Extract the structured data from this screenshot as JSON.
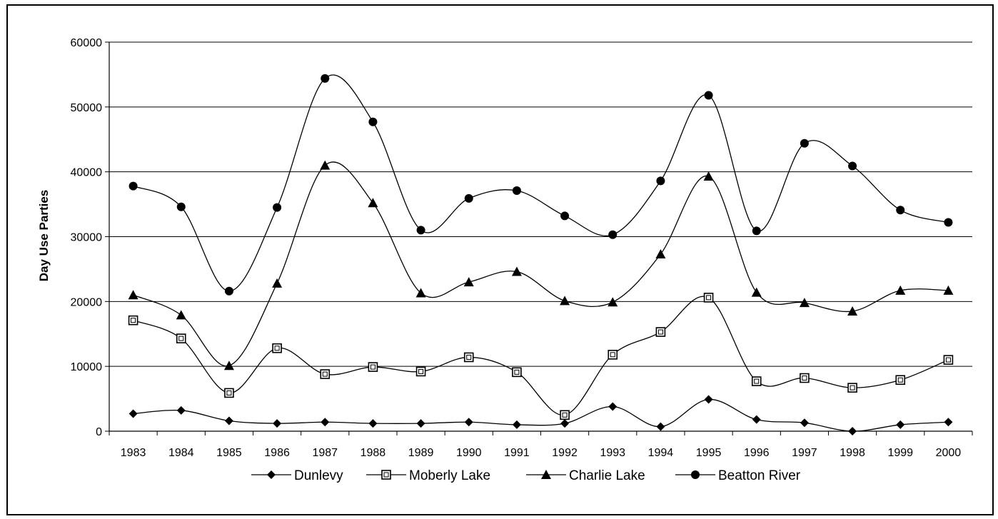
{
  "chart_data": {
    "type": "line",
    "title": "",
    "xlabel": "",
    "ylabel": "Day Use Parties",
    "ylim": [
      0,
      60000
    ],
    "yticks": [
      0,
      10000,
      20000,
      30000,
      40000,
      50000,
      60000
    ],
    "grid": "horizontal",
    "legend_position": "bottom",
    "categories": [
      "1983",
      "1984",
      "1985",
      "1986",
      "1987",
      "1988",
      "1989",
      "1990",
      "1991",
      "1992",
      "1993",
      "1994",
      "1995",
      "1996",
      "1997",
      "1998",
      "1999",
      "2000"
    ],
    "series": [
      {
        "name": "Dunlevy",
        "marker": "diamond",
        "values": [
          2700,
          3200,
          1600,
          1200,
          1400,
          1200,
          1200,
          1400,
          1000,
          1200,
          3800,
          700,
          4900,
          1800,
          1300,
          0,
          1000,
          1400
        ]
      },
      {
        "name": "Moberly Lake",
        "marker": "square",
        "values": [
          17100,
          14300,
          5900,
          12800,
          8800,
          9900,
          9200,
          11400,
          9100,
          2500,
          11800,
          15300,
          20600,
          7700,
          8200,
          6700,
          7900,
          11000
        ]
      },
      {
        "name": "Charlie Lake",
        "marker": "triangle",
        "values": [
          21000,
          17900,
          10100,
          22800,
          41000,
          35200,
          21300,
          23000,
          24600,
          20100,
          19900,
          27300,
          39300,
          21400,
          19800,
          18500,
          21700,
          21700
        ]
      },
      {
        "name": "Beatton River",
        "marker": "circle",
        "values": [
          37800,
          34600,
          21600,
          34500,
          54400,
          47700,
          31000,
          35900,
          37100,
          33200,
          30300,
          38600,
          51800,
          30900,
          44400,
          40900,
          34100,
          32200
        ]
      }
    ]
  }
}
